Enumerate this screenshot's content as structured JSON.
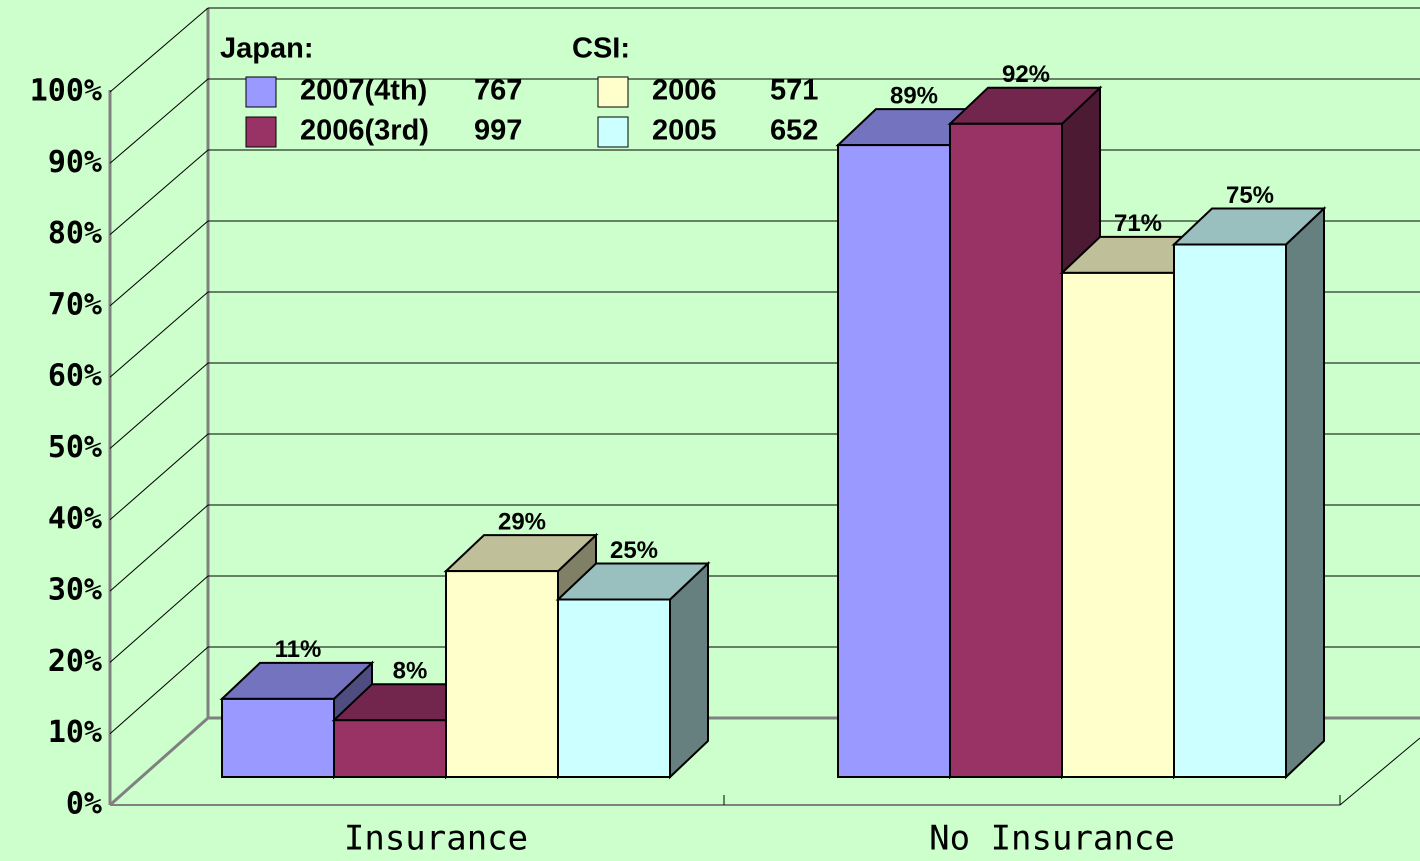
{
  "chart_data": {
    "type": "bar3d",
    "categories": [
      "Insurance",
      "No Insurance"
    ],
    "legend_titles": [
      "Japan:",
      "CSI:"
    ],
    "series": [
      {
        "name": "2007(4th)",
        "count": 767,
        "color": "#9999ff",
        "values": [
          11,
          89
        ],
        "value_labels": [
          "11%",
          "89%"
        ]
      },
      {
        "name": "2006(3rd)",
        "count": 997,
        "color": "#993366",
        "values": [
          8,
          92
        ],
        "value_labels": [
          "8%",
          "92%"
        ]
      },
      {
        "name": "2006",
        "count": 571,
        "color": "#ffffcc",
        "values": [
          29,
          71
        ],
        "value_labels": [
          "29%",
          "71%"
        ]
      },
      {
        "name": "2005",
        "count": 652,
        "color": "#ccffff",
        "values": [
          25,
          75
        ],
        "value_labels": [
          "25%",
          "75%"
        ]
      }
    ],
    "ylim": [
      0,
      100
    ],
    "yticks": [
      {
        "value": 0,
        "label": "0%"
      },
      {
        "value": 10,
        "label": "10%"
      },
      {
        "value": 20,
        "label": "20%"
      },
      {
        "value": 30,
        "label": "30%"
      },
      {
        "value": 40,
        "label": "40%"
      },
      {
        "value": 50,
        "label": "50%"
      },
      {
        "value": 60,
        "label": "60%"
      },
      {
        "value": 70,
        "label": "70%"
      },
      {
        "value": 80,
        "label": "80%"
      },
      {
        "value": 90,
        "label": "90%"
      },
      {
        "value": 100,
        "label": "100%"
      }
    ],
    "grid": true
  }
}
